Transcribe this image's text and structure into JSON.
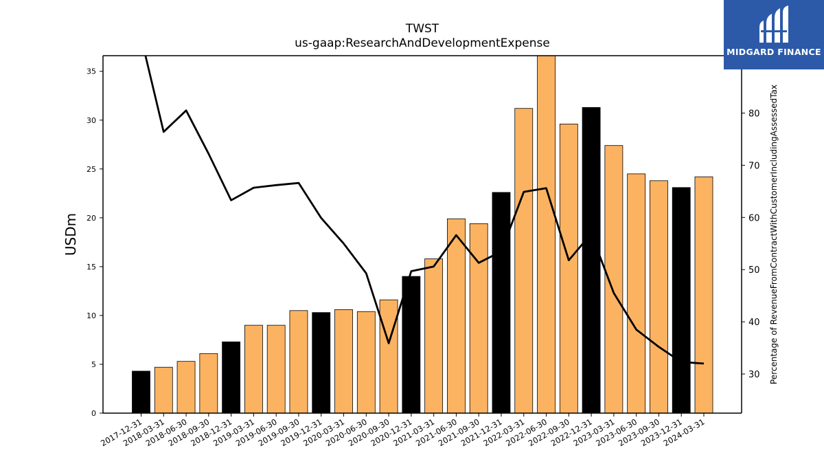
{
  "chart_data": {
    "type": "bar",
    "title": "TWST",
    "subtitle": "us-gaap:ResearchAndDevelopmentExpense",
    "ylabel": "USDm",
    "y2label": "Percentage of RevenueFromContractWithCustomerIncludingAssessedTax",
    "ylim": [
      0,
      36.6
    ],
    "y2lim": [
      22.5,
      91
    ],
    "yticks": [
      0,
      5,
      10,
      15,
      20,
      25,
      30,
      35
    ],
    "y2ticks": [
      30,
      40,
      50,
      60,
      70,
      80
    ],
    "categories": [
      "2017-12-31",
      "2018-03-31",
      "2018-06-30",
      "2018-09-30",
      "2018-12-31",
      "2019-03-31",
      "2019-06-30",
      "2019-09-30",
      "2019-12-31",
      "2020-03-31",
      "2020-06-30",
      "2020-09-30",
      "2020-12-31",
      "2021-03-31",
      "2021-06-30",
      "2021-09-30",
      "2021-12-31",
      "2022-03-31",
      "2022-06-30",
      "2022-09-30",
      "2022-12-31",
      "2023-03-31",
      "2023-06-30",
      "2023-09-30",
      "2023-12-31",
      "2024-03-31"
    ],
    "series": [
      {
        "type": "bar",
        "values": [
          4.3,
          4.7,
          5.3,
          6.1,
          7.3,
          9.0,
          9.0,
          10.5,
          10.3,
          10.6,
          10.4,
          11.6,
          14.0,
          15.8,
          19.9,
          19.4,
          22.6,
          31.2,
          36.8,
          29.6,
          31.3,
          27.4,
          24.5,
          23.8,
          23.1,
          24.2
        ],
        "colors": [
          "#000000",
          "#fbb362",
          "#fbb362",
          "#fbb362",
          "#000000",
          "#fbb362",
          "#fbb362",
          "#fbb362",
          "#000000",
          "#fbb362",
          "#fbb362",
          "#fbb362",
          "#000000",
          "#fbb362",
          "#fbb362",
          "#fbb362",
          "#000000",
          "#fbb362",
          "#fbb362",
          "#fbb362",
          "#000000",
          "#fbb362",
          "#fbb362",
          "#fbb362",
          "#000000",
          "#fbb362"
        ]
      },
      {
        "type": "line",
        "axis": "right",
        "color": "#000000",
        "values": [
          94.5,
          76.4,
          80.5,
          72.2,
          63.3,
          65.7,
          66.2,
          66.6,
          59.9,
          55.0,
          49.3,
          35.9,
          49.7,
          50.6,
          56.6,
          51.3,
          53.5,
          64.9,
          65.6,
          51.8,
          56.9,
          45.5,
          38.5,
          35.2,
          32.3,
          32.0
        ]
      }
    ],
    "grid": false,
    "legend": "none"
  },
  "logo": {
    "text": "MIDGARD FINANCE"
  }
}
